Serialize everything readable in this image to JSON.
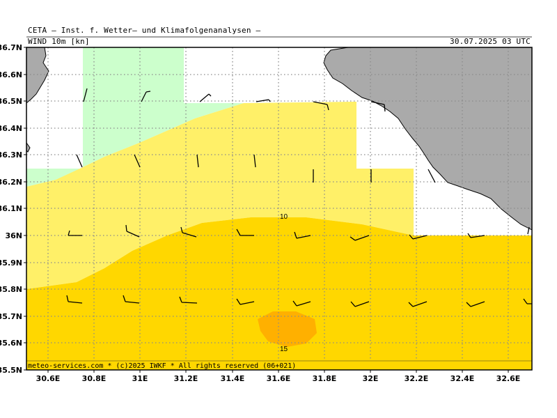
{
  "header": {
    "title": "CETA — Inst. f. Wetter— und Klimafolgenanalysen —",
    "variable": "WIND 10m [kn]",
    "datetime": "30.07.2025 03 UTC"
  },
  "footer": {
    "credit": "meteo-services.com * (c)2025 IWKF * All rights reserved (06+021)"
  },
  "axes": {
    "lat_labels": [
      "36.7N",
      "36.6N",
      "36.5N",
      "36.4N",
      "36.3N",
      "36.2N",
      "36.1N",
      "36N",
      "35.9N",
      "35.8N",
      "35.7N",
      "35.6N",
      "35.5N"
    ],
    "lon_labels": [
      "30.6E",
      "30.8E",
      "31E",
      "31.2E",
      "31.4E",
      "31.6E",
      "31.8E",
      "32E",
      "32.2E",
      "32.4E",
      "32.6E"
    ]
  },
  "contours": {
    "label_10": "10",
    "label_15": "15"
  },
  "legend_colors": {
    "lt5": "#ffffff",
    "5to10_light": "#ccffcc",
    "10_yellow_light": "#fff068",
    "10to15": "#ffd700",
    "15plus": "#ffb000",
    "land": "#aaaaaa"
  }
}
